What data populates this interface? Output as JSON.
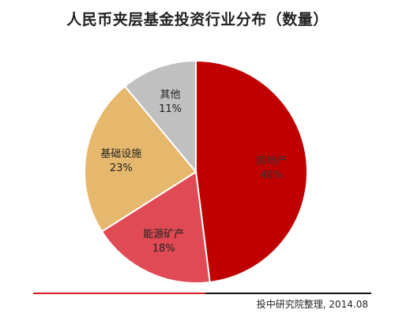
{
  "chart_data": {
    "type": "pie",
    "title": "人民币夹层基金投资行业分布（数量）",
    "start_angle_deg": 0,
    "direction": "clockwise",
    "slices": [
      {
        "label": "房地产",
        "value": 48,
        "value_label": "48%",
        "color": "#c00000",
        "label_color": "#333333"
      },
      {
        "label": "能源矿产",
        "value": 18,
        "value_label": "18%",
        "color": "#e04a55",
        "label_color": "#222222"
      },
      {
        "label": "基础设施",
        "value": 23,
        "value_label": "23%",
        "color": "#e6b86d",
        "label_color": "#222222"
      },
      {
        "label": "其他",
        "value": 11,
        "value_label": "11%",
        "color": "#c0c0c0",
        "label_color": "#222222"
      }
    ]
  },
  "footer": {
    "source": "投中研究院整理, 2014.08"
  }
}
